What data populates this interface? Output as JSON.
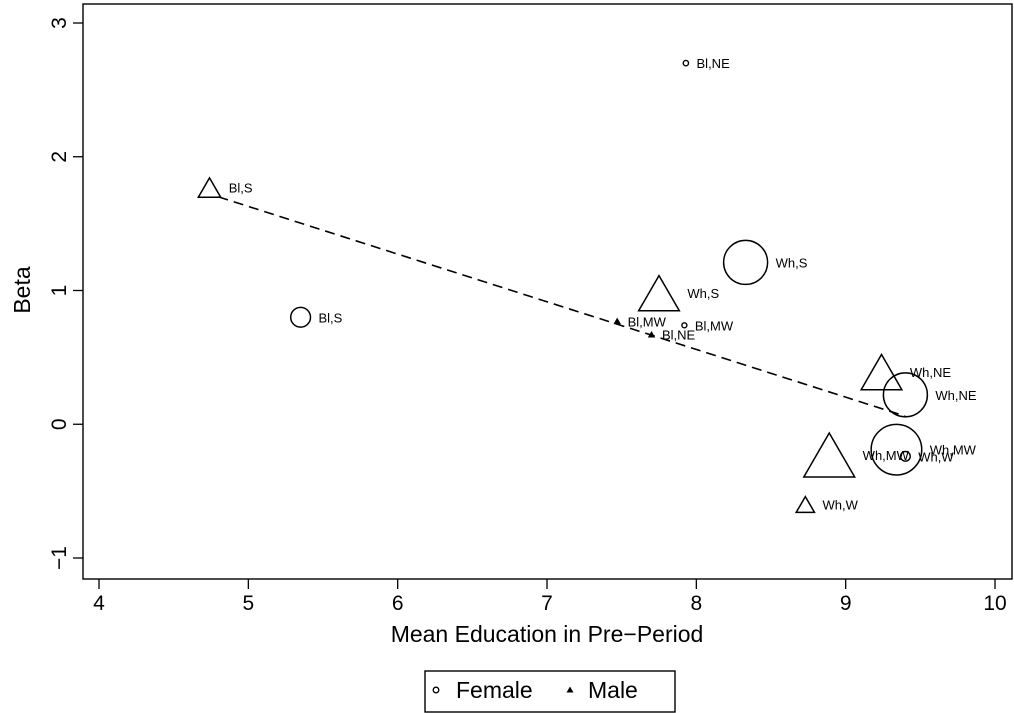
{
  "chart_data": {
    "type": "scatter",
    "xlabel": "Mean Education in Pre−Period",
    "ylabel": "Beta",
    "xlim": [
      4,
      10
    ],
    "ylim": [
      -1,
      3
    ],
    "x_ticks": [
      4,
      5,
      6,
      7,
      8,
      9,
      10
    ],
    "y_ticks": [
      {
        "value": -1,
        "label": "−1"
      },
      {
        "value": 0,
        "label": "0"
      },
      {
        "value": 1,
        "label": "1"
      },
      {
        "value": 2,
        "label": "2"
      },
      {
        "value": 3,
        "label": "3"
      }
    ],
    "grid": false,
    "legend_position": "bottom",
    "series": [
      {
        "name": "Female",
        "marker": "circle",
        "points": [
          {
            "x": 7.93,
            "y": 2.7,
            "label": "Bl,NE",
            "weight": 0.12
          },
          {
            "x": 5.35,
            "y": 0.8,
            "label": "Bl,S",
            "weight": 0.45
          },
          {
            "x": 7.92,
            "y": 0.74,
            "label": "Bl,MW",
            "weight": 0.1
          },
          {
            "x": 8.33,
            "y": 1.21,
            "label": "Wh,S",
            "weight": 1.0
          },
          {
            "x": 9.4,
            "y": 0.22,
            "label": "Wh,NE",
            "weight": 1.0
          },
          {
            "x": 9.34,
            "y": -0.19,
            "label": "Wh,MW",
            "weight": 1.15
          },
          {
            "x": 9.4,
            "y": -0.24,
            "label": "Wh,W",
            "weight": 0.22
          }
        ]
      },
      {
        "name": "Male",
        "marker": "triangle",
        "points": [
          {
            "x": 4.74,
            "y": 1.77,
            "label": "Bl,S",
            "weight": 0.55
          },
          {
            "x": 7.75,
            "y": 0.98,
            "label": "Wh,S",
            "weight": 1.0
          },
          {
            "x": 7.47,
            "y": 0.77,
            "label": "Bl,MW",
            "weight": 0.12
          },
          {
            "x": 7.7,
            "y": 0.67,
            "label": "Bl,NE",
            "weight": 0.12
          },
          {
            "x": 9.24,
            "y": 0.39,
            "label": "Wh,NE",
            "weight": 1.0
          },
          {
            "x": 8.89,
            "y": -0.23,
            "label": "Wh,MW",
            "weight": 1.25
          },
          {
            "x": 8.73,
            "y": -0.6,
            "label": "Wh,W",
            "weight": 0.45
          }
        ]
      }
    ],
    "fit_line": {
      "style": "dashed",
      "x": [
        4.8,
        9.4
      ],
      "y": [
        1.7,
        0.06
      ]
    }
  }
}
